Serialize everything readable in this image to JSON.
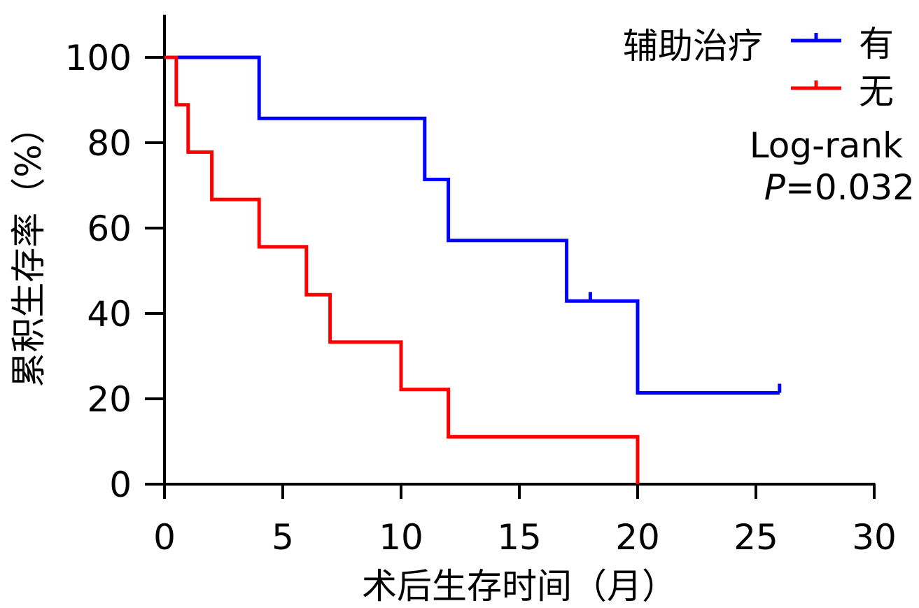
{
  "chart_data": {
    "type": "line",
    "xlabel": "术后生存时间（月）",
    "ylabel": "累积生存率（%）",
    "xlim": [
      0,
      30
    ],
    "ylim": [
      0,
      110
    ],
    "x_ticks": [
      0,
      5,
      10,
      15,
      20,
      25,
      30
    ],
    "y_ticks": [
      0,
      20,
      40,
      60,
      80,
      100
    ],
    "step": true,
    "legend": {
      "title": "辅助治疗",
      "position": "top-right"
    },
    "series": [
      {
        "name": "有",
        "color": "#0000ff",
        "x": [
          0,
          4,
          4,
          11,
          11,
          12,
          12,
          17,
          17,
          20,
          20,
          26
        ],
        "y": [
          100,
          100,
          85.7,
          85.7,
          71.4,
          71.4,
          57.1,
          57.1,
          42.9,
          42.9,
          21.4,
          21.4
        ],
        "censored": [
          {
            "x": 18,
            "y": 42.9
          },
          {
            "x": 26,
            "y": 21.4
          }
        ]
      },
      {
        "name": "无",
        "color": "#ff0000",
        "x": [
          0,
          0.5,
          0.5,
          1,
          1,
          2,
          2,
          4,
          4,
          6,
          6,
          7,
          7,
          10,
          10,
          12,
          12,
          20,
          20
        ],
        "y": [
          100,
          100,
          88.9,
          88.9,
          77.8,
          77.8,
          66.7,
          66.7,
          55.6,
          55.6,
          44.4,
          44.4,
          33.3,
          33.3,
          22.2,
          22.2,
          11.1,
          11.1,
          0
        ],
        "censored": []
      }
    ],
    "annotation": {
      "test": "Log-rank",
      "p_label": "P",
      "p_value": "=0.032"
    }
  }
}
